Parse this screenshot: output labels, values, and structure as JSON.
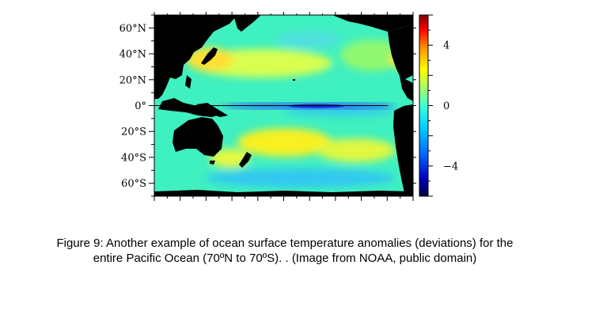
{
  "chart_data": {
    "type": "heatmap",
    "title": "Ocean surface temperature anomalies (deviations), Pacific Ocean 70ºN to 70ºS",
    "y_ticks": [
      "60°N",
      "40°N",
      "20°N",
      "0°",
      "20°S",
      "40°S",
      "60°S"
    ],
    "y_tick_values": [
      60,
      40,
      20,
      0,
      -20,
      -40,
      -60
    ],
    "ylim": [
      -70,
      70
    ],
    "colorbar": {
      "ticks": [
        "4",
        "0",
        "−4"
      ],
      "tick_values": [
        4,
        0,
        -4
      ],
      "range": [
        -6,
        6
      ],
      "colors": [
        "#000080",
        "#0000ff",
        "#0080ff",
        "#00e0ff",
        "#40ffd0",
        "#a0ff60",
        "#ffff00",
        "#ff9000",
        "#ff0000",
        "#900000"
      ]
    },
    "equator_line": "0°"
  },
  "caption": {
    "line1": "Figure 9: Another example of ocean surface temperature anomalies (deviations) for the",
    "line2": "entire Pacific Ocean (70ºN to 70ºS).  . (Image from NOAA, public domain)"
  }
}
